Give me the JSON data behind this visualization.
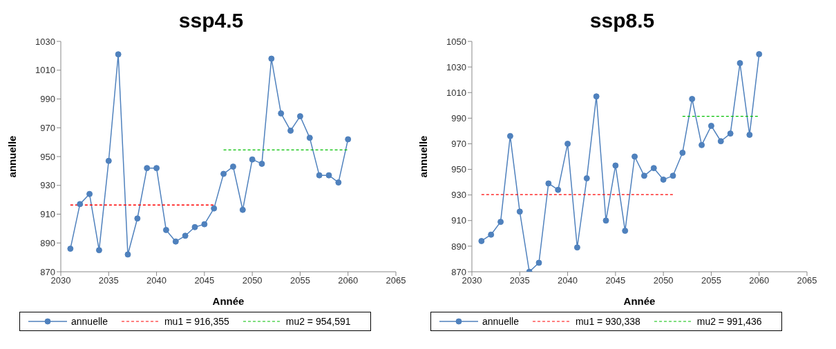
{
  "chart_data": [
    {
      "type": "line",
      "title": "ssp4.5",
      "xlabel": "Année",
      "ylabel": "annuelle",
      "xlim": [
        2030,
        2065
      ],
      "xticks": [
        2030,
        2035,
        2040,
        2045,
        2050,
        2055,
        2060,
        2065
      ],
      "ylim": [
        870,
        1030
      ],
      "yticks": [
        870,
        890,
        910,
        930,
        950,
        970,
        990,
        1010,
        1030
      ],
      "grid": false,
      "legend": "bottom",
      "x": [
        2031,
        2032,
        2033,
        2034,
        2035,
        2036,
        2037,
        2038,
        2039,
        2040,
        2041,
        2042,
        2043,
        2044,
        2045,
        2046,
        2047,
        2048,
        2049,
        2050,
        2051,
        2052,
        2053,
        2054,
        2055,
        2056,
        2057,
        2058,
        2059,
        2060
      ],
      "series": [
        {
          "name": "annuelle",
          "color": "#4f81bd",
          "marker": "circle",
          "line_style": "solid",
          "values": [
            886,
            917,
            924,
            885,
            947,
            1021,
            882,
            907,
            942,
            942,
            899,
            891,
            895,
            901,
            903,
            914,
            938,
            943,
            913,
            948,
            945,
            1018,
            980,
            968,
            978,
            963,
            937,
            937,
            932,
            962
          ]
        },
        {
          "name": "mu1 = 916,355",
          "color": "#ff0000",
          "marker": "none",
          "line_style": "dashed",
          "x": [
            2031,
            2046
          ],
          "values": [
            916.355,
            916.355
          ]
        },
        {
          "name": "mu2 = 954,591",
          "color": "#00c000",
          "marker": "none",
          "line_style": "dashed",
          "x": [
            2047,
            2060
          ],
          "values": [
            954.591,
            954.591
          ]
        }
      ]
    },
    {
      "type": "line",
      "title": "ssp8.5",
      "xlabel": "Année",
      "ylabel": "annuelle",
      "xlim": [
        2030,
        2065
      ],
      "xticks": [
        2030,
        2035,
        2040,
        2045,
        2050,
        2055,
        2060,
        2065
      ],
      "ylim": [
        870,
        1050
      ],
      "yticks": [
        870,
        890,
        910,
        930,
        950,
        970,
        990,
        1010,
        1030,
        1050
      ],
      "grid": false,
      "legend": "bottom",
      "x": [
        2031,
        2032,
        2033,
        2034,
        2035,
        2036,
        2037,
        2038,
        2039,
        2040,
        2041,
        2042,
        2043,
        2044,
        2045,
        2046,
        2047,
        2048,
        2049,
        2050,
        2051,
        2052,
        2053,
        2054,
        2055,
        2056,
        2057,
        2058,
        2059,
        2060
      ],
      "series": [
        {
          "name": "annuelle",
          "color": "#4f81bd",
          "marker": "circle",
          "line_style": "solid",
          "values": [
            894,
            899,
            909,
            976,
            917,
            870,
            877,
            939,
            934,
            970,
            889,
            943,
            1007,
            910,
            953,
            902,
            960,
            945,
            951,
            942,
            945,
            963,
            1005,
            969,
            984,
            972,
            978,
            1033,
            977,
            1040
          ]
        },
        {
          "name": "mu1 = 930,338",
          "color": "#ff0000",
          "marker": "none",
          "line_style": "dashed",
          "x": [
            2031,
            2051
          ],
          "values": [
            930.338,
            930.338
          ]
        },
        {
          "name": "mu2 = 991,436",
          "color": "#00c000",
          "marker": "none",
          "line_style": "dashed",
          "x": [
            2052,
            2060
          ],
          "values": [
            991.436,
            991.436
          ]
        }
      ]
    }
  ]
}
